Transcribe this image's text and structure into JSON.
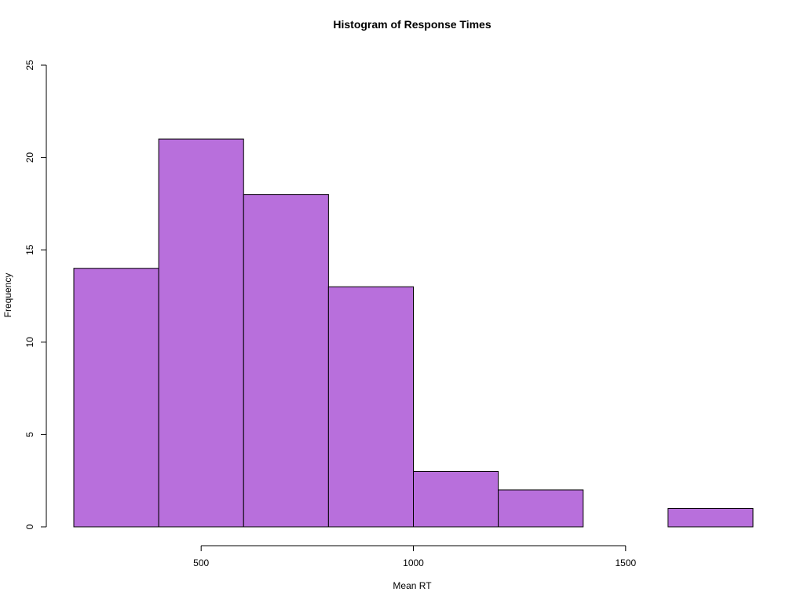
{
  "chart_data": {
    "type": "bar",
    "title": "Histogram of Response Times",
    "xlabel": "Mean RT",
    "ylabel": "Frequency",
    "bin_edges": [
      200,
      400,
      600,
      800,
      1000,
      1200,
      1400,
      1600,
      1800
    ],
    "counts": [
      14,
      21,
      18,
      13,
      3,
      2,
      0,
      1
    ],
    "xlim": [
      200,
      1800
    ],
    "ylim": [
      0,
      25
    ],
    "x_ticks": [
      500,
      1000,
      1500
    ],
    "x_tick_labels": [
      "500",
      "1000",
      "1500"
    ],
    "y_ticks": [
      0,
      5,
      10,
      15,
      20,
      25
    ],
    "y_tick_labels": [
      "0",
      "5",
      "10",
      "15",
      "20",
      "25"
    ],
    "grid": false,
    "bar_color": "#b86fdc"
  }
}
